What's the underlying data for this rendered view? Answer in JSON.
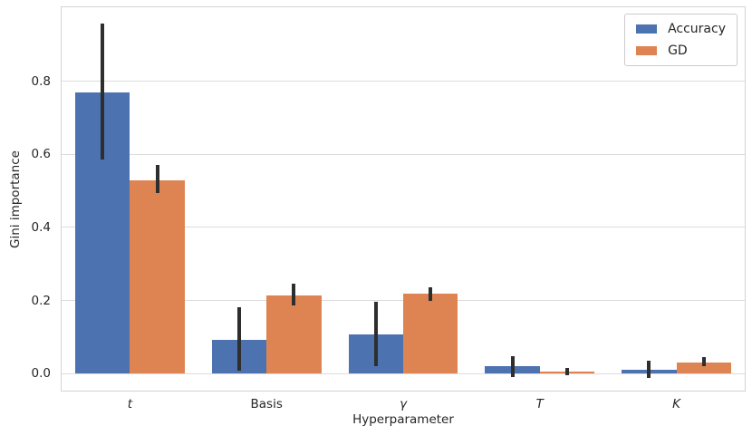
{
  "figure": {
    "background": "#ffffff",
    "grid_color": "#dcdcdc",
    "spine_color": "#d4d4d4",
    "errorbar_color": "#2e2e2e",
    "text_color": "#262626"
  },
  "chart_data": {
    "type": "bar",
    "title": "",
    "xlabel": "Hyperparameter",
    "ylabel": "Gini importance",
    "categories": [
      "t",
      "Basis",
      "γ",
      "T",
      "K"
    ],
    "categories_italic": [
      true,
      false,
      true,
      true,
      true
    ],
    "yticks": [
      0.0,
      0.2,
      0.4,
      0.6,
      0.8
    ],
    "ylim": [
      -0.046,
      1.002
    ],
    "grid": true,
    "legend": {
      "position": "upper right",
      "entries": [
        "Accuracy",
        "GD"
      ]
    },
    "series": [
      {
        "name": "Accuracy",
        "color": "#4C72B0",
        "values": [
          0.768,
          0.092,
          0.107,
          0.022,
          0.01
        ],
        "err_low": [
          0.585,
          0.008,
          0.022,
          -0.009,
          -0.012
        ],
        "err_high": [
          0.957,
          0.182,
          0.196,
          0.047,
          0.035
        ]
      },
      {
        "name": "GD",
        "color": "#DD8452",
        "values": [
          0.53,
          0.215,
          0.218,
          0.007,
          0.032
        ],
        "err_low": [
          0.493,
          0.187,
          0.199,
          -0.005,
          0.02
        ],
        "err_high": [
          0.571,
          0.247,
          0.237,
          0.017,
          0.045
        ]
      }
    ]
  }
}
